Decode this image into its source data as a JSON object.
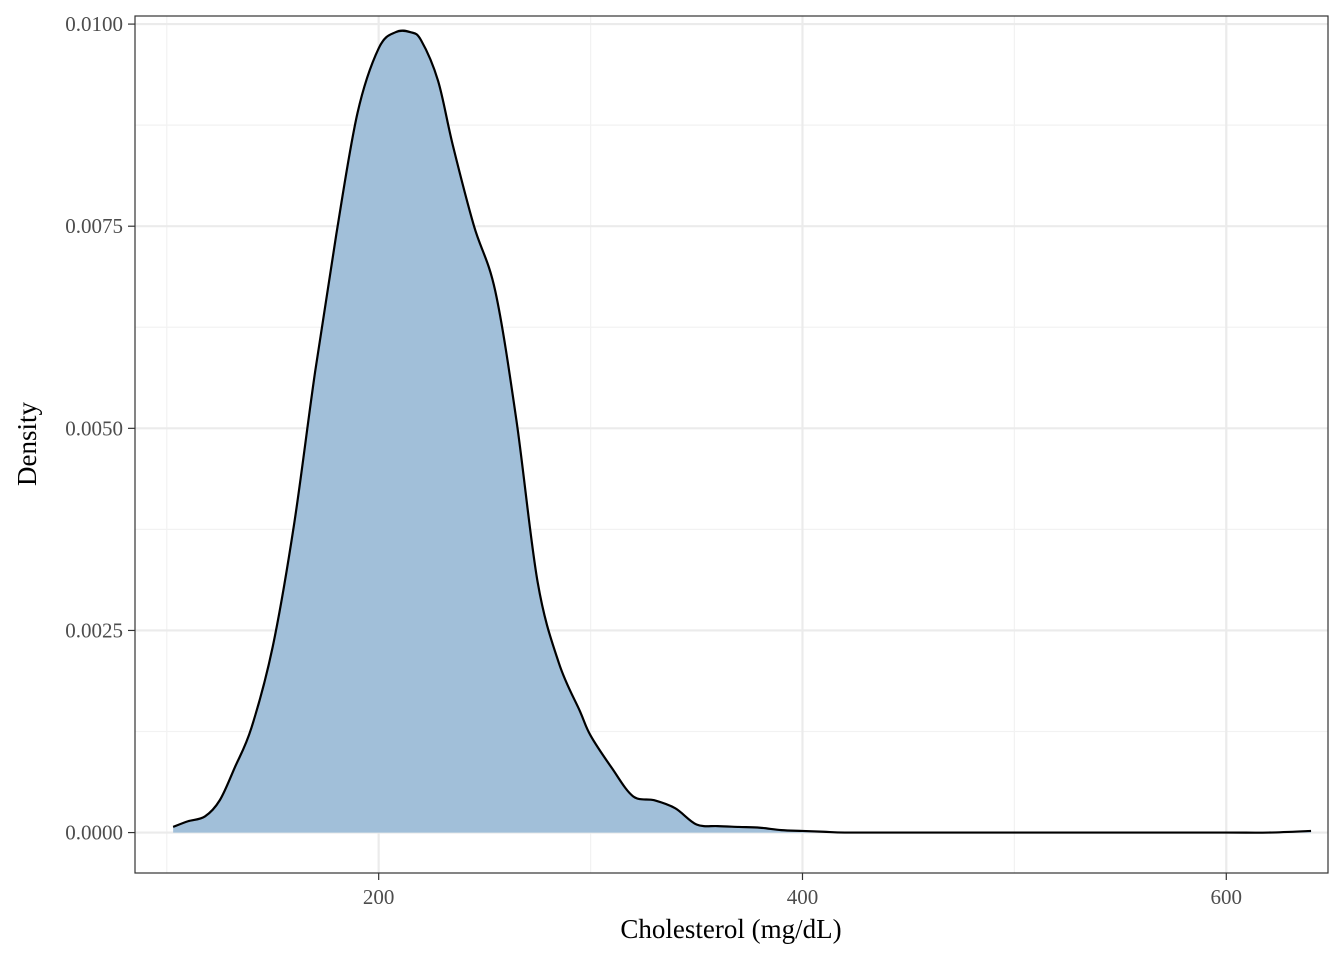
{
  "chart_data": {
    "type": "area",
    "title": "",
    "xlabel": "Cholesterol (mg/dL)",
    "ylabel": "Density",
    "xlim": [
      85,
      648
    ],
    "ylim": [
      -0.0005,
      0.0101
    ],
    "x_ticks": [
      {
        "value": 200,
        "label": "200"
      },
      {
        "value": 400,
        "label": "400"
      },
      {
        "value": 600,
        "label": "600"
      }
    ],
    "y_ticks": [
      {
        "value": 0.0,
        "label": "0.0000"
      },
      {
        "value": 0.0025,
        "label": "0.0025"
      },
      {
        "value": 0.005,
        "label": "0.0050"
      },
      {
        "value": 0.0075,
        "label": "0.0075"
      },
      {
        "value": 0.01,
        "label": "0.0100"
      }
    ],
    "grid": true,
    "legend": "none",
    "fill_color": "#a1bfd9",
    "line_color": "#000000",
    "x": [
      103,
      110,
      118,
      125,
      132,
      140,
      150,
      160,
      170,
      180,
      190,
      200,
      208,
      215,
      220,
      228,
      235,
      245,
      255,
      265,
      275,
      285,
      295,
      300,
      310,
      320,
      330,
      340,
      350,
      360,
      370,
      380,
      390,
      400,
      410,
      420,
      440,
      480,
      520,
      560,
      600,
      620,
      640
    ],
    "y": [
      7e-05,
      0.00014,
      0.0002,
      0.0004,
      0.0008,
      0.0013,
      0.0023,
      0.0038,
      0.0057,
      0.0074,
      0.0089,
      0.0097,
      0.0099,
      0.0099,
      0.0098,
      0.0093,
      0.0085,
      0.0075,
      0.0067,
      0.0051,
      0.0031,
      0.0021,
      0.0015,
      0.0012,
      0.0008,
      0.00045,
      0.0004,
      0.0003,
      0.0001,
      8e-05,
      7e-05,
      6e-05,
      3e-05,
      2e-05,
      1e-05,
      0.0,
      0.0,
      0.0,
      0.0,
      0.0,
      0.0,
      0.0,
      2e-05
    ]
  }
}
